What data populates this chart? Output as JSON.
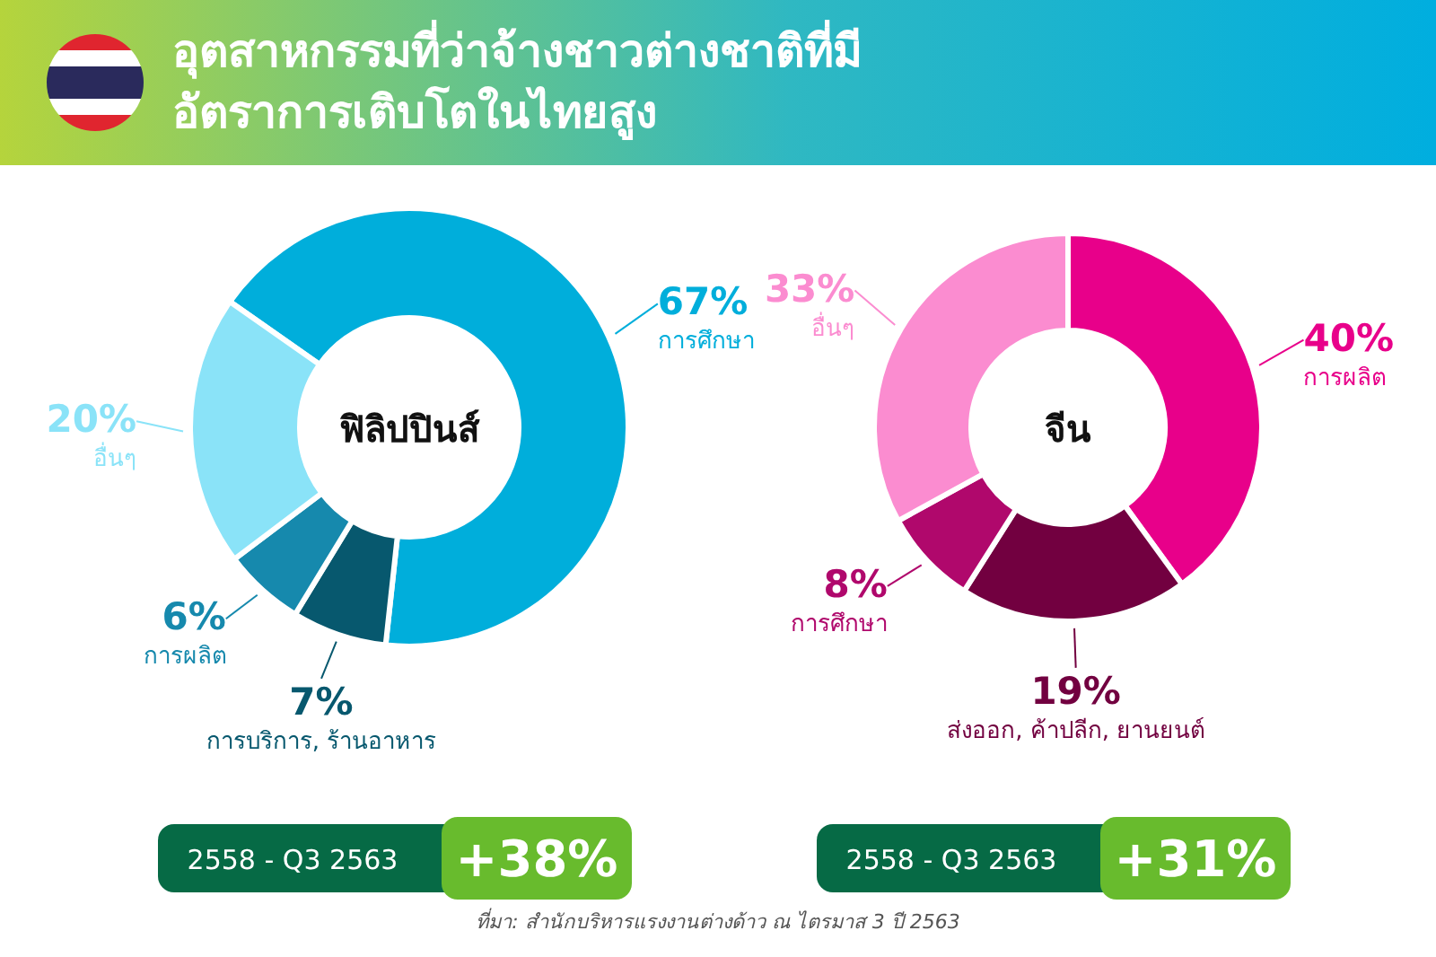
{
  "chart_data": [
    {
      "type": "donut",
      "title": "อุตสาหกรรมที่ว่าจ้างชาวต่างชาติที่มีอัตราการเติบโตในไทยสูง",
      "subtitle": "ฟิลิปปินส์",
      "categories": [
        "การศึกษา",
        "การบริการ, ร้านอาหาร",
        "การผลิต",
        "อื่นๆ"
      ],
      "values": [
        67,
        7,
        6,
        20
      ],
      "colors": [
        "#00aedb",
        "#07586e",
        "#1689ad",
        "#8ae3f8"
      ],
      "value_labels": [
        "67%",
        "7%",
        "6%",
        "20%"
      ],
      "annotations": [
        "2558 - Q3 2563",
        "+38%"
      ]
    },
    {
      "type": "donut",
      "subtitle": "จีน",
      "categories": [
        "การผลิต",
        "ส่งออก, ค้าปลีก, ยานยนต์",
        "การศึกษา",
        "อื่นๆ"
      ],
      "values": [
        40,
        19,
        8,
        33
      ],
      "colors": [
        "#e8008a",
        "#720040",
        "#b0086c",
        "#fb8cd0"
      ],
      "value_labels": [
        "40%",
        "19%",
        "8%",
        "33%"
      ],
      "annotations": [
        "2558 - Q3 2563",
        "+31%",
        "ที่มา: สำนักบริหารแรงงานต่างด้าว ณ ไตรมาส 3 ปี 2563"
      ]
    }
  ]
}
